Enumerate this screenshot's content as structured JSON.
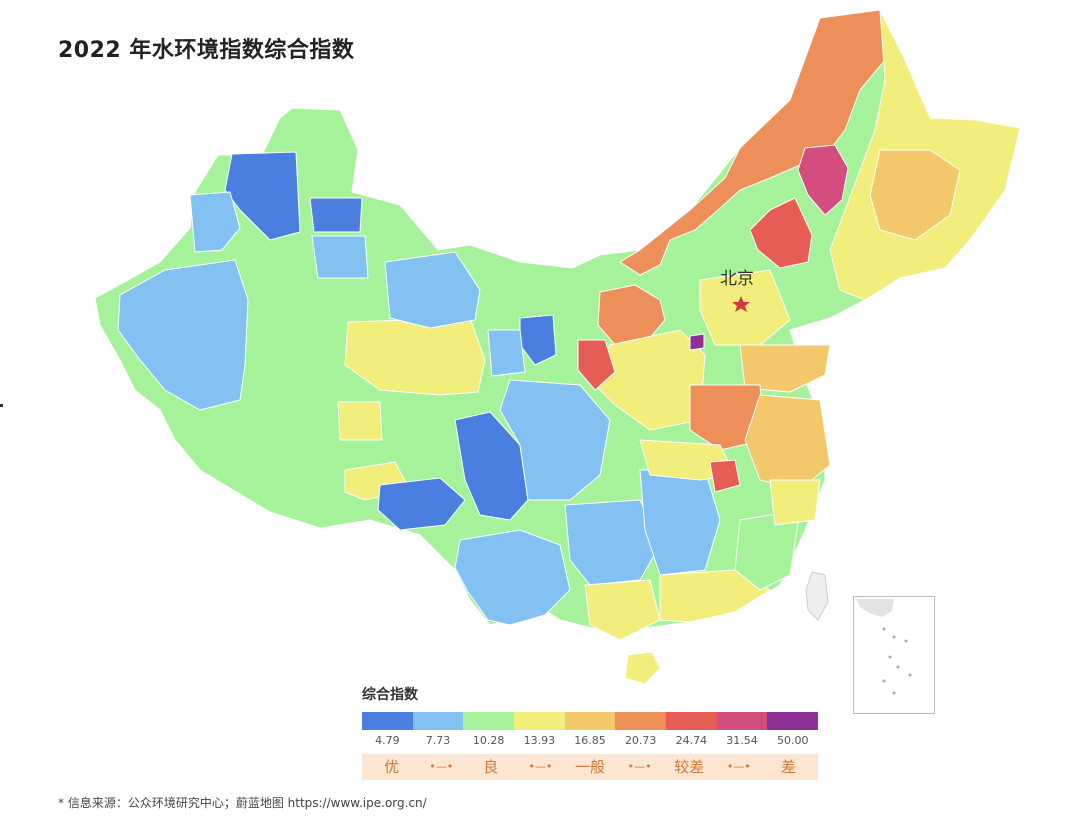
{
  "title": "2022 年水环境指数综合指数",
  "capital_label": "北京",
  "legend": {
    "title": "综合指数",
    "colors": [
      "#4a7fe0",
      "#82c1f2",
      "#a6f29a",
      "#f2ee7c",
      "#f2c86a",
      "#ec8f58",
      "#e75c55",
      "#d34d7e",
      "#8e3196"
    ],
    "ticks": [
      "4.79",
      "7.73",
      "10.28",
      "13.93",
      "16.85",
      "20.73",
      "24.74",
      "31.54",
      "50.00"
    ],
    "ranges": [
      "优",
      "良",
      "一般",
      "较差",
      "差"
    ]
  },
  "source": "*    信息来源：公众环境研究中心；蔚蓝地图 https://www.ipe.org.cn/"
}
